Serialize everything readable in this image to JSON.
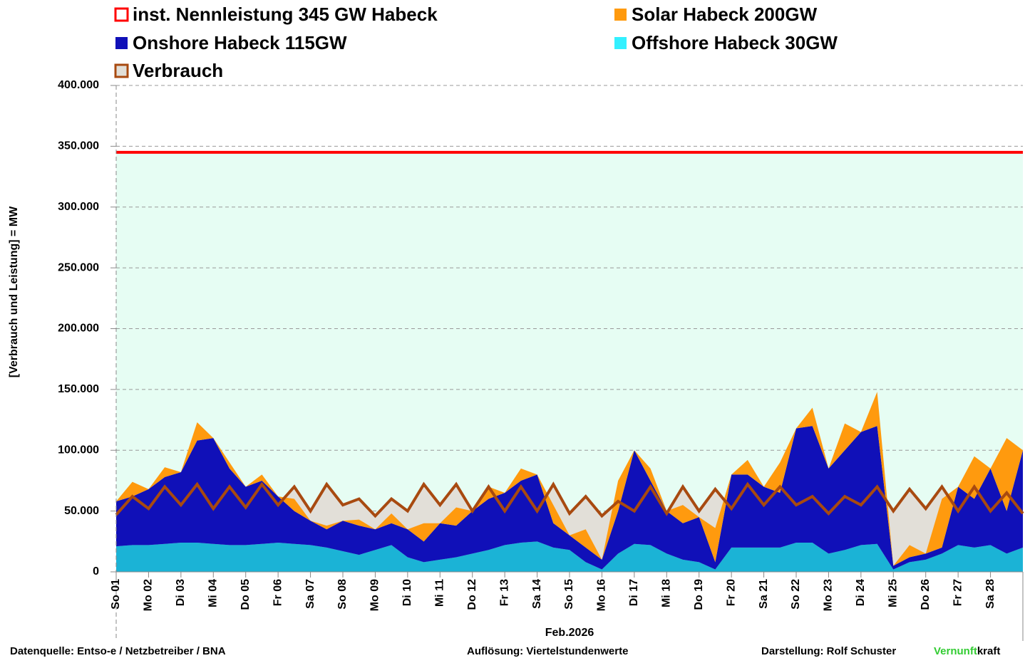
{
  "chart_data": {
    "type": "stacked-area",
    "y_label": "[Verbrauch und Leistung] = MW",
    "x_label": "Feb.2026",
    "x": [
      0,
      0.5,
      1,
      1.5,
      2,
      2.5,
      3,
      3.5,
      4,
      4.5,
      5,
      5.5,
      6,
      6.5,
      7,
      7.5,
      8,
      8.5,
      9,
      9.5,
      10,
      10.5,
      11,
      11.5,
      12,
      12.5,
      13,
      13.5,
      14,
      14.5,
      15,
      15.5,
      16,
      16.5,
      17,
      17.5,
      18,
      18.5,
      19,
      19.5,
      20,
      20.5,
      21,
      21.5,
      22,
      22.5,
      23,
      23.5,
      24,
      24.5,
      25,
      25.5,
      26,
      26.5,
      27,
      27.5,
      28
    ],
    "xlim": [
      0,
      28
    ],
    "xticks": [
      {
        "value": 0,
        "label": "So 01"
      },
      {
        "value": 1,
        "label": "Mo 02"
      },
      {
        "value": 2,
        "label": "Di 03"
      },
      {
        "value": 3,
        "label": "Mi 04"
      },
      {
        "value": 4,
        "label": "Do 05"
      },
      {
        "value": 5,
        "label": "Fr 06"
      },
      {
        "value": 6,
        "label": "Sa 07"
      },
      {
        "value": 7,
        "label": "So 08"
      },
      {
        "value": 8,
        "label": "Mo 09"
      },
      {
        "value": 9,
        "label": "Di 10"
      },
      {
        "value": 10,
        "label": "Mi 11"
      },
      {
        "value": 11,
        "label": "Do 12"
      },
      {
        "value": 12,
        "label": "Fr 13"
      },
      {
        "value": 13,
        "label": "Sa 14"
      },
      {
        "value": 14,
        "label": "So 15"
      },
      {
        "value": 15,
        "label": "Mo 16"
      },
      {
        "value": 16,
        "label": "Di 17"
      },
      {
        "value": 17,
        "label": "Mi 18"
      },
      {
        "value": 18,
        "label": "Do 19"
      },
      {
        "value": 19,
        "label": "Fr 20"
      },
      {
        "value": 20,
        "label": "Sa 21"
      },
      {
        "value": 21,
        "label": "So 22"
      },
      {
        "value": 22,
        "label": "Mo 23"
      },
      {
        "value": 23,
        "label": "Di 24"
      },
      {
        "value": 24,
        "label": "Mi 25"
      },
      {
        "value": 25,
        "label": "Do 26"
      },
      {
        "value": 26,
        "label": "Fr 27"
      },
      {
        "value": 27,
        "label": "Sa 28"
      }
    ],
    "ylim": [
      0,
      400000
    ],
    "yticks": [
      0,
      {
        "value": 50000,
        "label": "50.000"
      },
      {
        "value": 100000,
        "label": "100.000"
      },
      {
        "value": 150000,
        "label": "150.000"
      },
      {
        "value": 200000,
        "label": "200.000"
      },
      {
        "value": 250000,
        "label": "250.000"
      },
      {
        "value": 300000,
        "label": "300.000"
      },
      {
        "value": 350000,
        "label": "350.000"
      },
      {
        "value": 400000,
        "label": "400.000"
      }
    ],
    "grid": true,
    "capacity": {
      "name": "inst. Nennleistung 345 GW Habeck",
      "color": "#ff0000",
      "value": 345000,
      "fill": "#e6fdf3"
    },
    "series": [
      {
        "name": "Offshore Habeck 30GW",
        "color": "#1bb3d6",
        "values": [
          21000,
          22000,
          22000,
          23000,
          24000,
          24000,
          23000,
          22000,
          22000,
          23000,
          24000,
          23000,
          22000,
          20000,
          17000,
          14000,
          18000,
          22000,
          12000,
          8000,
          10000,
          12000,
          15000,
          18000,
          22000,
          24000,
          25000,
          20000,
          18000,
          8000,
          2000,
          15000,
          23000,
          22000,
          15000,
          10000,
          8000,
          2000,
          20000,
          20000,
          20000,
          20000,
          24000,
          24000,
          15000,
          18000,
          22000,
          23000,
          2000,
          8000,
          10000,
          15000,
          22000,
          20000,
          22000,
          15000,
          20000
        ]
      },
      {
        "name": "Onshore Habeck 115GW",
        "color": "#1010b8",
        "values": [
          37000,
          40000,
          46000,
          55000,
          58000,
          84000,
          87000,
          63000,
          48000,
          52000,
          38000,
          27000,
          20000,
          15000,
          25000,
          24000,
          17000,
          18000,
          23000,
          17000,
          30000,
          26000,
          35000,
          42000,
          43000,
          51000,
          55000,
          20000,
          12000,
          12000,
          8000,
          35000,
          77000,
          53000,
          35000,
          30000,
          37000,
          6000,
          60000,
          60000,
          50000,
          45000,
          94000,
          96000,
          70000,
          82000,
          93000,
          97000,
          3000,
          4000,
          5000,
          5000,
          48000,
          40000,
          63000,
          35000,
          80000
        ]
      },
      {
        "name": "Solar Habeck 200GW",
        "color": "#ff9a0e",
        "values": [
          0,
          12000,
          0,
          8000,
          0,
          15000,
          0,
          5000,
          0,
          5000,
          0,
          10000,
          0,
          3000,
          0,
          5000,
          0,
          8000,
          0,
          15000,
          0,
          15000,
          0,
          10000,
          0,
          10000,
          0,
          15000,
          0,
          15000,
          0,
          25000,
          0,
          10000,
          0,
          15000,
          0,
          28000,
          0,
          12000,
          0,
          25000,
          0,
          15000,
          0,
          22000,
          0,
          28000,
          0,
          10000,
          0,
          40000,
          0,
          35000,
          0,
          60000,
          0
        ]
      }
    ],
    "line": {
      "name": "Verbrauch",
      "color": "#a84a10",
      "fill": "#e2dfd8",
      "values": [
        47000,
        62000,
        52000,
        70000,
        55000,
        72000,
        52000,
        70000,
        53000,
        72000,
        55000,
        70000,
        50000,
        72000,
        55000,
        60000,
        46000,
        60000,
        50000,
        72000,
        55000,
        72000,
        50000,
        70000,
        50000,
        70000,
        50000,
        72000,
        48000,
        62000,
        46000,
        58000,
        50000,
        70000,
        48000,
        70000,
        50000,
        68000,
        52000,
        72000,
        55000,
        70000,
        55000,
        62000,
        48000,
        62000,
        55000,
        70000,
        50000,
        68000,
        52000,
        70000,
        50000,
        70000,
        50000,
        65000,
        48000
      ]
    },
    "footer": {
      "source": "Datenquelle: Entso-e  / Netzbetreiber / BNA",
      "resolution": "Auflösung: Viertelstundenwerte",
      "author": "Darstellung:  Rolf Schuster",
      "brand_green": "Vernunft",
      "brand_rest": "kraft"
    }
  }
}
